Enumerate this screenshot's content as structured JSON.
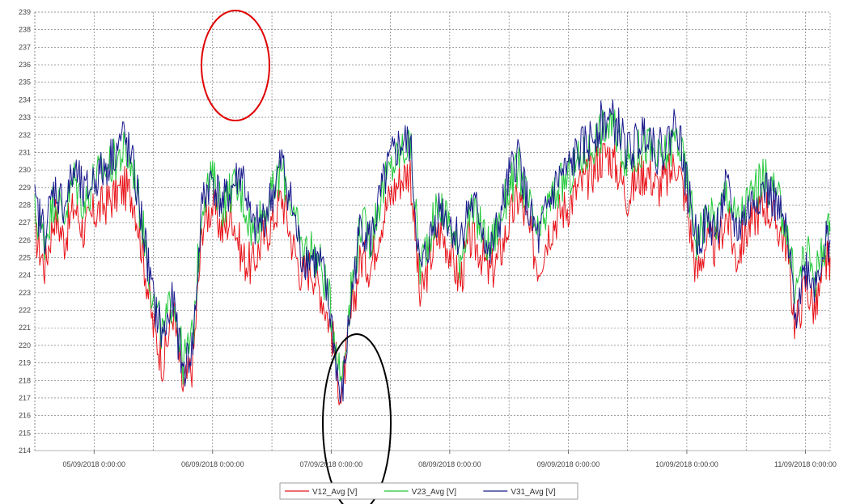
{
  "chart_data": {
    "type": "line",
    "title": "",
    "xlabel": "",
    "ylabel": "",
    "ylim": [
      214,
      239
    ],
    "yticks": [
      214,
      215,
      216,
      217,
      218,
      219,
      220,
      221,
      222,
      223,
      224,
      225,
      226,
      227,
      228,
      229,
      230,
      231,
      232,
      233,
      234,
      235,
      236,
      237,
      238,
      239
    ],
    "xlim": [
      "04/09/2018 12:00:00",
      "11/09/2018 05:00:00"
    ],
    "xticks": [
      "05/09/2018 0:00:00",
      "06/09/2018 0:00:00",
      "07/09/2018 0:00:00",
      "08/09/2018 0:00:00",
      "09/09/2018 0:00:00",
      "10/09/2018 0:00:00",
      "11/09/2018 0:00:00"
    ],
    "grid": true,
    "legend_position": "bottom",
    "annotations": [
      {
        "shape": "ellipse",
        "color": "#e00000",
        "around": "06/09/2018 morning, 235–238 V"
      },
      {
        "shape": "ellipse",
        "color": "#000000",
        "around": "07/09/2018 0:00, 214–220 V"
      }
    ],
    "x": [
      "04/09 12:00",
      "04/09 14:00",
      "04/09 16:00",
      "04/09 18:00",
      "04/09 20:00",
      "04/09 22:00",
      "05/09 00:00",
      "05/09 02:00",
      "05/09 04:00",
      "05/09 06:00",
      "05/09 08:00",
      "05/09 10:00",
      "05/09 12:00",
      "05/09 14:00",
      "05/09 16:00",
      "05/09 18:00",
      "05/09 20:00",
      "05/09 22:00",
      "06/09 00:00",
      "06/09 02:00",
      "06/09 04:00",
      "06/09 06:00",
      "06/09 08:00",
      "06/09 10:00",
      "06/09 12:00",
      "06/09 14:00",
      "06/09 16:00",
      "06/09 18:00",
      "06/09 20:00",
      "06/09 22:00",
      "07/09 00:00",
      "07/09 02:00",
      "07/09 04:00",
      "07/09 06:00",
      "07/09 08:00",
      "07/09 10:00",
      "07/09 12:00",
      "07/09 14:00",
      "07/09 16:00",
      "07/09 18:00",
      "07/09 20:00",
      "07/09 22:00",
      "08/09 00:00",
      "08/09 02:00",
      "08/09 04:00",
      "08/09 06:00",
      "08/09 08:00",
      "08/09 10:00",
      "08/09 12:00",
      "08/09 14:00",
      "08/09 16:00",
      "08/09 18:00",
      "08/09 20:00",
      "08/09 22:00",
      "09/09 00:00",
      "09/09 02:00",
      "09/09 04:00",
      "09/09 06:00",
      "09/09 08:00",
      "09/09 10:00",
      "09/09 12:00",
      "09/09 14:00",
      "09/09 16:00",
      "09/09 18:00",
      "09/09 20:00",
      "09/09 22:00",
      "10/09 00:00",
      "10/09 02:00",
      "10/09 04:00",
      "10/09 06:00",
      "10/09 08:00",
      "10/09 10:00",
      "10/09 12:00",
      "10/09 14:00",
      "10/09 16:00",
      "10/09 18:00",
      "10/09 20:00",
      "10/09 22:00",
      "11/09 00:00",
      "11/09 02:00",
      "11/09 04:00",
      "11/09 05:00"
    ],
    "series": [
      {
        "name": "V12_Avg [V]",
        "color": "#e8141a",
        "values": [
          226.5,
          224.5,
          227.5,
          226.0,
          228.0,
          226.5,
          227.5,
          228.0,
          228.5,
          229.0,
          228.5,
          225.0,
          221.0,
          219.0,
          222.0,
          217.5,
          219.0,
          227.0,
          228.0,
          226.5,
          227.5,
          225.0,
          224.5,
          226.0,
          227.0,
          228.5,
          226.0,
          224.0,
          224.5,
          223.0,
          221.0,
          217.0,
          221.5,
          225.0,
          224.5,
          227.0,
          228.5,
          229.5,
          230.0,
          222.5,
          225.0,
          226.5,
          225.5,
          223.5,
          226.0,
          225.5,
          224.0,
          225.0,
          227.0,
          228.5,
          226.5,
          224.5,
          226.5,
          227.5,
          228.0,
          229.0,
          229.5,
          230.5,
          231.0,
          230.0,
          228.5,
          229.5,
          230.0,
          229.0,
          229.5,
          230.5,
          228.0,
          224.0,
          226.0,
          225.5,
          227.5,
          225.0,
          226.5,
          227.5,
          228.0,
          227.0,
          226.0,
          221.0,
          223.5,
          222.0,
          224.5,
          225.0
        ]
      },
      {
        "name": "V23_Avg [V]",
        "color": "#22c83a",
        "values": [
          227.5,
          226.0,
          228.5,
          227.5,
          229.5,
          228.0,
          229.5,
          230.0,
          230.5,
          231.0,
          230.0,
          226.5,
          222.5,
          220.5,
          223.0,
          219.0,
          220.5,
          228.5,
          229.5,
          228.0,
          229.0,
          228.5,
          226.5,
          227.5,
          228.5,
          230.0,
          228.0,
          225.5,
          225.5,
          224.5,
          222.0,
          218.0,
          223.0,
          227.0,
          226.0,
          228.5,
          230.0,
          231.0,
          231.5,
          224.5,
          226.5,
          228.0,
          227.0,
          225.0,
          227.5,
          227.0,
          225.5,
          227.0,
          229.0,
          230.0,
          228.0,
          226.0,
          228.0,
          229.0,
          229.5,
          230.5,
          231.0,
          232.0,
          232.5,
          232.0,
          230.5,
          231.0,
          231.5,
          230.5,
          231.0,
          232.0,
          229.5,
          226.0,
          227.5,
          227.0,
          229.0,
          227.0,
          228.0,
          229.0,
          229.5,
          228.5,
          227.0,
          223.0,
          225.5,
          224.0,
          226.0,
          226.5
        ]
      },
      {
        "name": "V31_Avg [V]",
        "color": "#1a1a8c",
        "values": [
          228.0,
          226.5,
          229.0,
          228.0,
          230.0,
          228.5,
          229.5,
          230.0,
          231.0,
          232.0,
          230.0,
          226.5,
          222.5,
          220.5,
          222.5,
          218.5,
          220.0,
          228.5,
          229.5,
          228.0,
          229.0,
          230.0,
          226.5,
          227.0,
          228.5,
          230.5,
          228.0,
          225.0,
          225.0,
          224.5,
          221.5,
          216.5,
          222.5,
          227.0,
          226.0,
          228.5,
          230.5,
          231.5,
          231.5,
          224.0,
          226.0,
          228.0,
          227.0,
          226.0,
          228.0,
          227.5,
          225.0,
          227.0,
          229.5,
          231.0,
          227.5,
          226.0,
          228.0,
          229.5,
          230.0,
          231.0,
          231.5,
          232.5,
          233.0,
          232.5,
          231.0,
          231.5,
          232.5,
          231.0,
          231.5,
          233.0,
          229.0,
          226.0,
          227.0,
          226.5,
          229.0,
          226.5,
          227.5,
          228.5,
          229.0,
          228.0,
          226.5,
          222.0,
          224.5,
          223.5,
          226.0,
          226.0
        ]
      }
    ]
  }
}
